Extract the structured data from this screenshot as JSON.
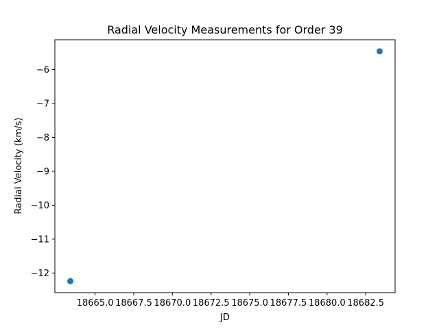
{
  "chart_data": {
    "type": "scatter",
    "title": "Radial Velocity Measurements for Order 39",
    "xlabel": "JD",
    "ylabel": "Radial Velocity (km/s)",
    "points": [
      {
        "x": 18663.4,
        "y": -12.24
      },
      {
        "x": 18683.4,
        "y": -5.46
      }
    ],
    "x_ticks": [
      {
        "value": 18665.0,
        "label": "18665.0"
      },
      {
        "value": 18667.5,
        "label": "18667.5"
      },
      {
        "value": 18670.0,
        "label": "18670.0"
      },
      {
        "value": 18672.5,
        "label": "18672.5"
      },
      {
        "value": 18675.0,
        "label": "18675.0"
      },
      {
        "value": 18677.5,
        "label": "18677.5"
      },
      {
        "value": 18680.0,
        "label": "18680.0"
      },
      {
        "value": 18682.5,
        "label": "18682.5"
      }
    ],
    "y_ticks": [
      {
        "value": -12,
        "label": "−12"
      },
      {
        "value": -11,
        "label": "−11"
      },
      {
        "value": -10,
        "label": "−10"
      },
      {
        "value": -9,
        "label": "−9"
      },
      {
        "value": -8,
        "label": "−8"
      },
      {
        "value": -7,
        "label": "−7"
      },
      {
        "value": -6,
        "label": "−6"
      }
    ],
    "xlim": [
      18662.4,
      18684.4
    ],
    "ylim": [
      -12.58,
      -5.12
    ],
    "grid": false,
    "legend": "none",
    "colors": {
      "marker": "#1f77b4",
      "axis": "#000000"
    }
  }
}
